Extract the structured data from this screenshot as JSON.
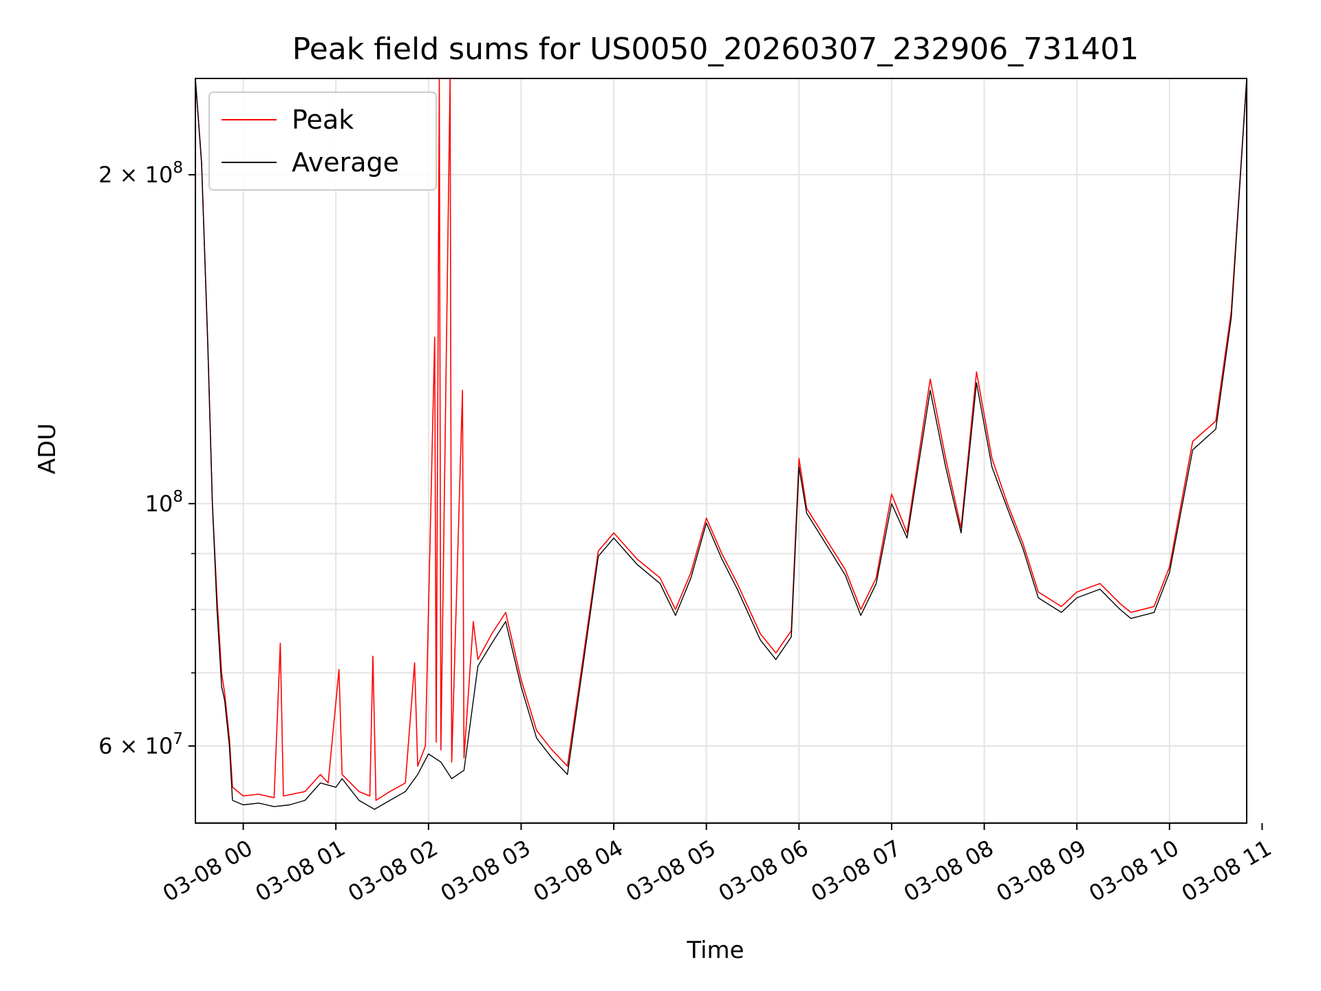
{
  "chart_data": {
    "type": "line",
    "title": "Peak field sums for US0050_20260307_232906_731401",
    "xlabel": "Time",
    "ylabel": "ADU",
    "yscale": "log",
    "ylim": [
      51000000,
      245000000
    ],
    "xlim": [
      "2026-03-07 23:29",
      "2026-03-08 10:50"
    ],
    "grid": true,
    "legend_position": "top-left",
    "x_ticks": [
      {
        "time": "2026-03-08 00:00",
        "label": "03-08 00"
      },
      {
        "time": "2026-03-08 01:00",
        "label": "03-08 01"
      },
      {
        "time": "2026-03-08 02:00",
        "label": "03-08 02"
      },
      {
        "time": "2026-03-08 03:00",
        "label": "03-08 03"
      },
      {
        "time": "2026-03-08 04:00",
        "label": "03-08 04"
      },
      {
        "time": "2026-03-08 05:00",
        "label": "03-08 05"
      },
      {
        "time": "2026-03-08 06:00",
        "label": "03-08 06"
      },
      {
        "time": "2026-03-08 07:00",
        "label": "03-08 07"
      },
      {
        "time": "2026-03-08 08:00",
        "label": "03-08 08"
      },
      {
        "time": "2026-03-08 09:00",
        "label": "03-08 09"
      },
      {
        "time": "2026-03-08 10:00",
        "label": "03-08 10"
      },
      {
        "time": "2026-03-08 11:00",
        "label": "03-08 11"
      }
    ],
    "y_ticks_major": [
      {
        "value": 60000000,
        "mantissa": "6",
        "exponent": "7"
      },
      {
        "value": 100000000,
        "mantissa": "",
        "exponent": "8"
      },
      {
        "value": 200000000,
        "mantissa": "2",
        "exponent": "8"
      }
    ],
    "y_ticks_minor": [
      70000000,
      80000000,
      90000000
    ],
    "y_tick_multiplier": "×",
    "y_tick_base": "10",
    "series": [
      {
        "name": "Peak",
        "color": "#ff0000",
        "points": [
          [
            "2026-03-07 23:29",
            245000000
          ],
          [
            "2026-03-07 23:33",
            205000000
          ],
          [
            "2026-03-07 23:37",
            140000000
          ],
          [
            "2026-03-07 23:40",
            100000000
          ],
          [
            "2026-03-07 23:43",
            82000000
          ],
          [
            "2026-03-07 23:46",
            70000000
          ],
          [
            "2026-03-07 23:48",
            67000000
          ],
          [
            "2026-03-07 23:51",
            61000000
          ],
          [
            "2026-03-07 23:53",
            55000000
          ],
          [
            "2026-03-08 00:00",
            54000000
          ],
          [
            "2026-03-08 00:10",
            54200000
          ],
          [
            "2026-03-08 00:20",
            53800000
          ],
          [
            "2026-03-08 00:24",
            74500000
          ],
          [
            "2026-03-08 00:26",
            54000000
          ],
          [
            "2026-03-08 00:40",
            54500000
          ],
          [
            "2026-03-08 00:50",
            56500000
          ],
          [
            "2026-03-08 00:55",
            55500000
          ],
          [
            "2026-03-08 01:02",
            70500000
          ],
          [
            "2026-03-08 01:04",
            56500000
          ],
          [
            "2026-03-08 01:15",
            54500000
          ],
          [
            "2026-03-08 01:22",
            54000000
          ],
          [
            "2026-03-08 01:24",
            72500000
          ],
          [
            "2026-03-08 01:26",
            53500000
          ],
          [
            "2026-03-08 01:35",
            54500000
          ],
          [
            "2026-03-08 01:45",
            55500000
          ],
          [
            "2026-03-08 01:51",
            71500000
          ],
          [
            "2026-03-08 01:53",
            57500000
          ],
          [
            "2026-03-08 01:58",
            60000000
          ],
          [
            "2026-03-08 02:04",
            142000000
          ],
          [
            "2026-03-08 02:05",
            60500000
          ],
          [
            "2026-03-08 02:07",
            245000000
          ],
          [
            "2026-03-08 02:08",
            59500000
          ],
          [
            "2026-03-08 02:14",
            245000000
          ],
          [
            "2026-03-08 02:15",
            58000000
          ],
          [
            "2026-03-08 02:22",
            127000000
          ],
          [
            "2026-03-08 02:23",
            58500000
          ],
          [
            "2026-03-08 02:29",
            78000000
          ],
          [
            "2026-03-08 02:32",
            72000000
          ],
          [
            "2026-03-08 02:41",
            76000000
          ],
          [
            "2026-03-08 02:50",
            79500000
          ],
          [
            "2026-03-08 03:00",
            69000000
          ],
          [
            "2026-03-08 03:10",
            62000000
          ],
          [
            "2026-03-08 03:20",
            59500000
          ],
          [
            "2026-03-08 03:30",
            57500000
          ],
          [
            "2026-03-08 03:40",
            72000000
          ],
          [
            "2026-03-08 03:50",
            90500000
          ],
          [
            "2026-03-08 04:00",
            94000000
          ],
          [
            "2026-03-08 04:15",
            89000000
          ],
          [
            "2026-03-08 04:30",
            85500000
          ],
          [
            "2026-03-08 04:40",
            80000000
          ],
          [
            "2026-03-08 04:50",
            86500000
          ],
          [
            "2026-03-08 05:00",
            97000000
          ],
          [
            "2026-03-08 05:10",
            90000000
          ],
          [
            "2026-03-08 05:20",
            84500000
          ],
          [
            "2026-03-08 05:35",
            76000000
          ],
          [
            "2026-03-08 05:45",
            73000000
          ],
          [
            "2026-03-08 05:55",
            76500000
          ],
          [
            "2026-03-08 06:00",
            110000000
          ],
          [
            "2026-03-08 06:05",
            99000000
          ],
          [
            "2026-03-08 06:15",
            94000000
          ],
          [
            "2026-03-08 06:30",
            87000000
          ],
          [
            "2026-03-08 06:40",
            80000000
          ],
          [
            "2026-03-08 06:50",
            85500000
          ],
          [
            "2026-03-08 07:00",
            102000000
          ],
          [
            "2026-03-08 07:10",
            94000000
          ],
          [
            "2026-03-08 07:25",
            130000000
          ],
          [
            "2026-03-08 07:35",
            110000000
          ],
          [
            "2026-03-08 07:45",
            95000000
          ],
          [
            "2026-03-08 07:55",
            132000000
          ],
          [
            "2026-03-08 08:05",
            110000000
          ],
          [
            "2026-03-08 08:15",
            100000000
          ],
          [
            "2026-03-08 08:25",
            92000000
          ],
          [
            "2026-03-08 08:35",
            83000000
          ],
          [
            "2026-03-08 08:50",
            80500000
          ],
          [
            "2026-03-08 09:00",
            83000000
          ],
          [
            "2026-03-08 09:15",
            84500000
          ],
          [
            "2026-03-08 09:28",
            81000000
          ],
          [
            "2026-03-08 09:35",
            79500000
          ],
          [
            "2026-03-08 09:50",
            80500000
          ],
          [
            "2026-03-08 10:00",
            87500000
          ],
          [
            "2026-03-08 10:15",
            114000000
          ],
          [
            "2026-03-08 10:30",
            119000000
          ],
          [
            "2026-03-08 10:40",
            150000000
          ],
          [
            "2026-03-08 10:50",
            245000000
          ]
        ]
      },
      {
        "name": "Average",
        "color": "#000000",
        "points": [
          [
            "2026-03-07 23:29",
            245000000
          ],
          [
            "2026-03-07 23:33",
            205000000
          ],
          [
            "2026-03-07 23:37",
            140000000
          ],
          [
            "2026-03-07 23:40",
            100000000
          ],
          [
            "2026-03-07 23:43",
            80000000
          ],
          [
            "2026-03-07 23:46",
            68000000
          ],
          [
            "2026-03-07 23:48",
            66000000
          ],
          [
            "2026-03-07 23:51",
            60000000
          ],
          [
            "2026-03-07 23:53",
            53500000
          ],
          [
            "2026-03-08 00:00",
            53000000
          ],
          [
            "2026-03-08 00:10",
            53200000
          ],
          [
            "2026-03-08 00:20",
            52800000
          ],
          [
            "2026-03-08 00:30",
            53000000
          ],
          [
            "2026-03-08 00:40",
            53500000
          ],
          [
            "2026-03-08 00:50",
            55500000
          ],
          [
            "2026-03-08 01:00",
            55000000
          ],
          [
            "2026-03-08 01:04",
            56000000
          ],
          [
            "2026-03-08 01:15",
            53500000
          ],
          [
            "2026-03-08 01:25",
            52500000
          ],
          [
            "2026-03-08 01:35",
            53500000
          ],
          [
            "2026-03-08 01:45",
            54500000
          ],
          [
            "2026-03-08 01:53",
            56500000
          ],
          [
            "2026-03-08 02:00",
            59000000
          ],
          [
            "2026-03-08 02:08",
            58000000
          ],
          [
            "2026-03-08 02:15",
            56000000
          ],
          [
            "2026-03-08 02:23",
            57000000
          ],
          [
            "2026-03-08 02:32",
            71000000
          ],
          [
            "2026-03-08 02:41",
            74500000
          ],
          [
            "2026-03-08 02:50",
            78000000
          ],
          [
            "2026-03-08 03:00",
            68000000
          ],
          [
            "2026-03-08 03:10",
            61000000
          ],
          [
            "2026-03-08 03:20",
            58500000
          ],
          [
            "2026-03-08 03:30",
            56500000
          ],
          [
            "2026-03-08 03:40",
            71000000
          ],
          [
            "2026-03-08 03:50",
            89500000
          ],
          [
            "2026-03-08 04:00",
            93000000
          ],
          [
            "2026-03-08 04:15",
            88000000
          ],
          [
            "2026-03-08 04:30",
            84500000
          ],
          [
            "2026-03-08 04:40",
            79000000
          ],
          [
            "2026-03-08 04:50",
            85500000
          ],
          [
            "2026-03-08 05:00",
            96000000
          ],
          [
            "2026-03-08 05:10",
            89000000
          ],
          [
            "2026-03-08 05:20",
            83500000
          ],
          [
            "2026-03-08 05:35",
            75000000
          ],
          [
            "2026-03-08 05:45",
            72000000
          ],
          [
            "2026-03-08 05:55",
            75500000
          ],
          [
            "2026-03-08 06:00",
            108000000
          ],
          [
            "2026-03-08 06:05",
            98000000
          ],
          [
            "2026-03-08 06:15",
            93000000
          ],
          [
            "2026-03-08 06:30",
            86000000
          ],
          [
            "2026-03-08 06:40",
            79000000
          ],
          [
            "2026-03-08 06:50",
            84500000
          ],
          [
            "2026-03-08 07:00",
            100000000
          ],
          [
            "2026-03-08 07:10",
            93000000
          ],
          [
            "2026-03-08 07:25",
            127000000
          ],
          [
            "2026-03-08 07:35",
            108000000
          ],
          [
            "2026-03-08 07:45",
            94000000
          ],
          [
            "2026-03-08 07:55",
            129000000
          ],
          [
            "2026-03-08 08:05",
            108000000
          ],
          [
            "2026-03-08 08:15",
            99000000
          ],
          [
            "2026-03-08 08:25",
            91000000
          ],
          [
            "2026-03-08 08:35",
            82000000
          ],
          [
            "2026-03-08 08:50",
            79500000
          ],
          [
            "2026-03-08 09:00",
            82000000
          ],
          [
            "2026-03-08 09:15",
            83500000
          ],
          [
            "2026-03-08 09:28",
            80000000
          ],
          [
            "2026-03-08 09:35",
            78500000
          ],
          [
            "2026-03-08 09:50",
            79500000
          ],
          [
            "2026-03-08 10:00",
            86500000
          ],
          [
            "2026-03-08 10:15",
            112000000
          ],
          [
            "2026-03-08 10:30",
            117000000
          ],
          [
            "2026-03-08 10:40",
            148000000
          ],
          [
            "2026-03-08 10:50",
            245000000
          ]
        ]
      }
    ]
  }
}
